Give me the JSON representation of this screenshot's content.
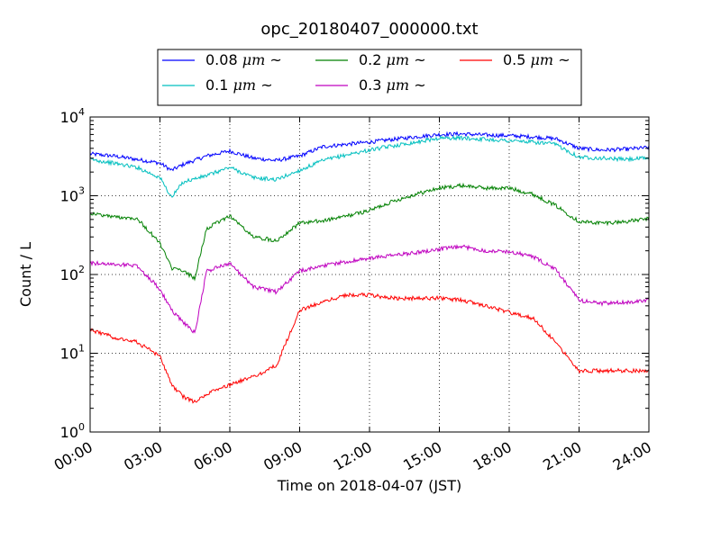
{
  "chart_data": {
    "type": "line",
    "title": "opc_20180407_000000.txt",
    "xlabel": "Time on 2018-04-07 (JST)",
    "ylabel": "Count / L",
    "xlim": [
      "00:00",
      "24:00"
    ],
    "ylim": [
      1,
      10000
    ],
    "yscale": "log",
    "grid": true,
    "legend_position": "top-center",
    "x_tick_labels": [
      "00:00",
      "03:00",
      "06:00",
      "09:00",
      "12:00",
      "15:00",
      "18:00",
      "21:00",
      "24:00"
    ],
    "y_tick_labels": [
      {
        "base": "10",
        "exp": "0"
      },
      {
        "base": "10",
        "exp": "1"
      },
      {
        "base": "10",
        "exp": "2"
      },
      {
        "base": "10",
        "exp": "3"
      },
      {
        "base": "10",
        "exp": "4"
      }
    ],
    "series": [
      {
        "name": "0.08 μm ~",
        "name_size": "0.08",
        "name_unit": "μm",
        "name_suffix": "~",
        "color": "#0000ff",
        "x": [
          "00:00",
          "01:00",
          "02:00",
          "03:00",
          "03:30",
          "04:00",
          "05:00",
          "06:00",
          "07:00",
          "08:00",
          "09:00",
          "10:00",
          "11:00",
          "12:00",
          "13:00",
          "14:00",
          "15:00",
          "16:00",
          "17:00",
          "18:00",
          "19:00",
          "20:00",
          "21:00",
          "22:00",
          "23:00",
          "24:00"
        ],
        "y": [
          3400,
          3200,
          2900,
          2600,
          2100,
          2500,
          3200,
          3700,
          3000,
          2800,
          3200,
          4200,
          4500,
          4800,
          5200,
          5600,
          6000,
          6100,
          5900,
          5800,
          5600,
          5300,
          4000,
          3800,
          3900,
          4100
        ]
      },
      {
        "name": "0.1 μm ~",
        "name_size": "0.1",
        "name_unit": "μm",
        "name_suffix": "~",
        "color": "#00bfbf",
        "x": [
          "00:00",
          "01:00",
          "02:00",
          "03:00",
          "03:30",
          "04:00",
          "05:00",
          "06:00",
          "07:00",
          "08:00",
          "09:00",
          "10:00",
          "11:00",
          "12:00",
          "13:00",
          "14:00",
          "15:00",
          "16:00",
          "17:00",
          "18:00",
          "19:00",
          "20:00",
          "21:00",
          "22:00",
          "23:00",
          "24:00"
        ],
        "y": [
          2900,
          2600,
          2300,
          1700,
          950,
          1500,
          1800,
          2300,
          1700,
          1600,
          2100,
          2800,
          3300,
          3800,
          4300,
          4800,
          5400,
          5400,
          5200,
          5000,
          4800,
          4500,
          3100,
          3000,
          2900,
          3000
        ]
      },
      {
        "name": "0.2 μm ~",
        "name_size": "0.2",
        "name_unit": "μm",
        "name_suffix": "~",
        "color": "#008000",
        "x": [
          "00:00",
          "01:00",
          "02:00",
          "03:00",
          "03:30",
          "04:00",
          "04:30",
          "05:00",
          "06:00",
          "07:00",
          "08:00",
          "09:00",
          "10:00",
          "11:00",
          "12:00",
          "13:00",
          "14:00",
          "15:00",
          "16:00",
          "17:00",
          "18:00",
          "19:00",
          "20:00",
          "21:00",
          "22:00",
          "23:00",
          "24:00"
        ],
        "y": [
          600,
          540,
          520,
          250,
          120,
          110,
          90,
          380,
          560,
          300,
          270,
          450,
          480,
          550,
          650,
          850,
          1050,
          1250,
          1350,
          1250,
          1250,
          1050,
          750,
          470,
          450,
          470,
          510
        ]
      },
      {
        "name": "0.3 μm ~",
        "name_size": "0.3",
        "name_unit": "μm",
        "name_suffix": "~",
        "color": "#bf00bf",
        "x": [
          "00:00",
          "01:00",
          "02:00",
          "03:00",
          "03:30",
          "04:00",
          "04:30",
          "05:00",
          "06:00",
          "07:00",
          "08:00",
          "09:00",
          "10:00",
          "11:00",
          "12:00",
          "13:00",
          "14:00",
          "15:00",
          "16:00",
          "17:00",
          "18:00",
          "19:00",
          "20:00",
          "21:00",
          "22:00",
          "23:00",
          "24:00"
        ],
        "y": [
          140,
          135,
          130,
          65,
          35,
          25,
          18,
          110,
          140,
          70,
          60,
          110,
          130,
          145,
          160,
          175,
          190,
          210,
          225,
          200,
          195,
          170,
          115,
          47,
          43,
          44,
          48
        ]
      },
      {
        "name": "0.5 μm ~",
        "name_size": "0.5",
        "name_unit": "μm",
        "name_suffix": "~",
        "color": "#ff0000",
        "x": [
          "00:00",
          "01:00",
          "02:00",
          "03:00",
          "03:30",
          "04:00",
          "04:30",
          "05:00",
          "06:00",
          "07:00",
          "08:00",
          "09:00",
          "10:00",
          "11:00",
          "12:00",
          "13:00",
          "14:00",
          "15:00",
          "16:00",
          "17:00",
          "18:00",
          "19:00",
          "20:00",
          "21:00",
          "22:00",
          "23:00",
          "24:00"
        ],
        "y": [
          20,
          16,
          14,
          9,
          4,
          2.8,
          2.4,
          3,
          4,
          5,
          7,
          35,
          45,
          55,
          55,
          50,
          50,
          50,
          47,
          40,
          33,
          28,
          14,
          6,
          6,
          6,
          6
        ]
      }
    ]
  }
}
